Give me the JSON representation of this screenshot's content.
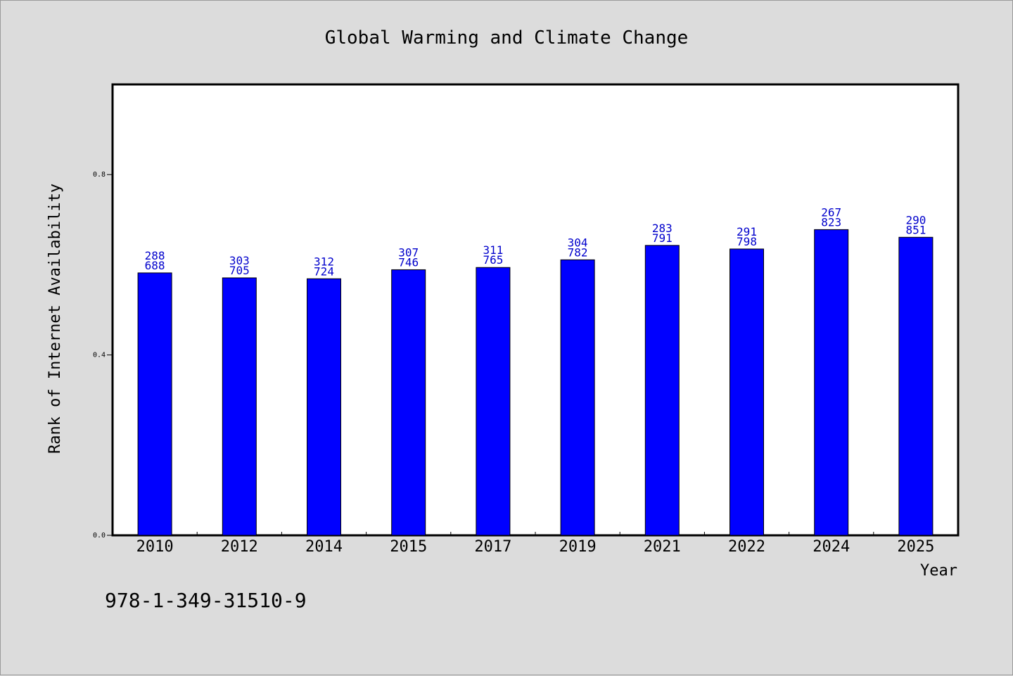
{
  "chart_data": {
    "type": "bar",
    "title": "Global Warming and Climate Change",
    "xlabel": "Year",
    "ylabel": "Rank of Internet Availability",
    "categories": [
      "2010",
      "2012",
      "2014",
      "2015",
      "2017",
      "2019",
      "2021",
      "2022",
      "2024",
      "2025"
    ],
    "values": [
      0.582,
      0.571,
      0.569,
      0.589,
      0.594,
      0.611,
      0.643,
      0.635,
      0.678,
      0.661
    ],
    "labels_top": [
      "288",
      "303",
      "312",
      "307",
      "311",
      "304",
      "283",
      "291",
      "267",
      "290"
    ],
    "labels_bottom": [
      "688",
      "705",
      "724",
      "746",
      "765",
      "782",
      "791",
      "798",
      "823",
      "851"
    ],
    "ylim": [
      0,
      1.0
    ],
    "yticks": [
      0.0,
      0.4,
      0.8
    ],
    "ytick_labels": [
      "0.0",
      "0.4",
      "0.8"
    ],
    "grid": false,
    "legend": "none",
    "bar_color": "#0000ff"
  },
  "footer": {
    "isbn": "978-1-349-31510-9"
  }
}
